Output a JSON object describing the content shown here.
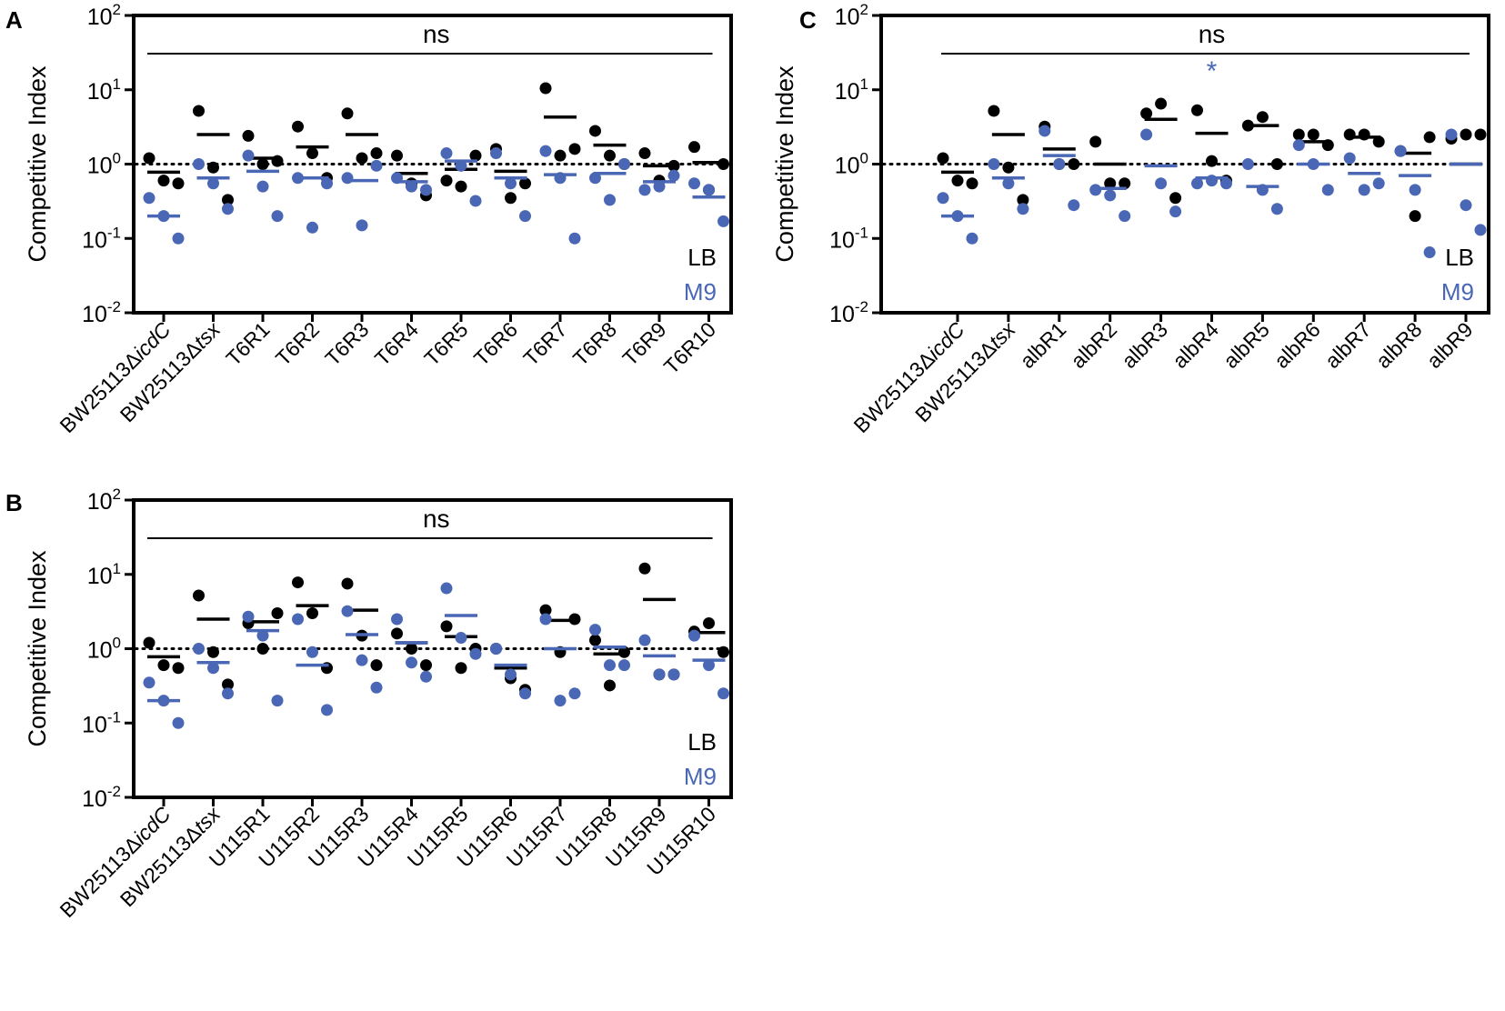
{
  "colors": {
    "lb": "#000000",
    "m9": "#4a67b5"
  },
  "chart_data": [
    {
      "type": "scatter",
      "panel_label": "A",
      "ylabel": "Competitive Index",
      "yscale": "log",
      "ylim": [
        0.01,
        100
      ],
      "yticks": [
        {
          "base": "10",
          "exp": "2"
        },
        {
          "base": "10",
          "exp": "1"
        },
        {
          "base": "10",
          "exp": "0"
        },
        {
          "base": "10",
          "exp": "-1"
        },
        {
          "base": "10",
          "exp": "-2"
        }
      ],
      "reference_line": 1,
      "significance": "ns",
      "legend": {
        "lb": "LB",
        "m9": "M9"
      },
      "categories": [
        {
          "parts": [
            {
              "t": "BW25113Δ",
              "i": false
            },
            {
              "t": "icdC",
              "i": true
            }
          ]
        },
        {
          "parts": [
            {
              "t": "BW25113Δ",
              "i": false
            },
            {
              "t": "tsx",
              "i": true
            }
          ]
        },
        {
          "parts": [
            {
              "t": "T6R1",
              "i": false
            }
          ]
        },
        {
          "parts": [
            {
              "t": "T6R2",
              "i": false
            }
          ]
        },
        {
          "parts": [
            {
              "t": "T6R3",
              "i": false
            }
          ]
        },
        {
          "parts": [
            {
              "t": "T6R4",
              "i": false
            }
          ]
        },
        {
          "parts": [
            {
              "t": "T6R5",
              "i": false
            }
          ]
        },
        {
          "parts": [
            {
              "t": "T6R6",
              "i": false
            }
          ]
        },
        {
          "parts": [
            {
              "t": "T6R7",
              "i": false
            }
          ]
        },
        {
          "parts": [
            {
              "t": "T6R8",
              "i": false
            }
          ]
        },
        {
          "parts": [
            {
              "t": "T6R9",
              "i": false
            }
          ]
        },
        {
          "parts": [
            {
              "t": "T6R10",
              "i": false
            }
          ]
        }
      ],
      "series": [
        {
          "name": "LB",
          "color_key": "lb",
          "points": [
            [
              1.2,
              0.6,
              0.55
            ],
            [
              5.2,
              0.9,
              0.33
            ],
            [
              2.4,
              1.0,
              1.1
            ],
            [
              3.2,
              1.4,
              0.65
            ],
            [
              4.8,
              1.2,
              1.4
            ],
            [
              1.3,
              0.55,
              0.38
            ],
            [
              0.6,
              0.5,
              1.3
            ],
            [
              1.6,
              0.35,
              0.55
            ],
            [
              10.5,
              1.3,
              1.6
            ],
            [
              2.8,
              1.3,
              1.0
            ],
            [
              1.4,
              0.6,
              0.95
            ],
            [
              1.7,
              0.45,
              1.0
            ]
          ],
          "means": [
            0.78,
            2.5,
            1.2,
            1.7,
            2.5,
            0.75,
            0.85,
            0.8,
            4.3,
            1.8,
            0.95,
            1.05
          ]
        },
        {
          "name": "M9",
          "color_key": "m9",
          "points": [
            [
              0.35,
              0.2,
              0.1
            ],
            [
              1.0,
              0.55,
              0.25
            ],
            [
              1.3,
              0.5,
              0.2
            ],
            [
              0.65,
              0.14,
              0.55
            ],
            [
              0.65,
              0.15,
              0.95
            ],
            [
              0.65,
              0.5,
              0.45
            ],
            [
              1.4,
              0.95,
              0.32
            ],
            [
              1.4,
              0.55,
              0.2
            ],
            [
              1.5,
              0.65,
              0.1
            ],
            [
              0.65,
              0.33,
              1.0
            ],
            [
              0.45,
              0.5,
              0.7
            ],
            [
              0.55,
              0.45,
              0.17
            ]
          ],
          "means": [
            0.2,
            0.65,
            0.8,
            0.65,
            0.6,
            0.58,
            1.1,
            0.65,
            0.72,
            0.75,
            0.58,
            0.36
          ]
        }
      ]
    },
    {
      "type": "scatter",
      "panel_label": "B",
      "ylabel": "Competitive Index",
      "yscale": "log",
      "ylim": [
        0.01,
        100
      ],
      "yticks": [
        {
          "base": "10",
          "exp": "2"
        },
        {
          "base": "10",
          "exp": "1"
        },
        {
          "base": "10",
          "exp": "0"
        },
        {
          "base": "10",
          "exp": "-1"
        },
        {
          "base": "10",
          "exp": "-2"
        }
      ],
      "reference_line": 1,
      "significance": "ns",
      "legend": {
        "lb": "LB",
        "m9": "M9"
      },
      "categories": [
        {
          "parts": [
            {
              "t": "BW25113Δ",
              "i": false
            },
            {
              "t": "icdC",
              "i": true
            }
          ]
        },
        {
          "parts": [
            {
              "t": "BW25113Δ",
              "i": false
            },
            {
              "t": "tsx",
              "i": true
            }
          ]
        },
        {
          "parts": [
            {
              "t": "U115R1",
              "i": false
            }
          ]
        },
        {
          "parts": [
            {
              "t": "U115R2",
              "i": false
            }
          ]
        },
        {
          "parts": [
            {
              "t": "U115R3",
              "i": false
            }
          ]
        },
        {
          "parts": [
            {
              "t": "U115R4",
              "i": false
            }
          ]
        },
        {
          "parts": [
            {
              "t": "U115R5",
              "i": false
            }
          ]
        },
        {
          "parts": [
            {
              "t": "U115R6",
              "i": false
            }
          ]
        },
        {
          "parts": [
            {
              "t": "U115R7",
              "i": false
            }
          ]
        },
        {
          "parts": [
            {
              "t": "U115R8",
              "i": false
            }
          ]
        },
        {
          "parts": [
            {
              "t": "U115R9",
              "i": false
            }
          ]
        },
        {
          "parts": [
            {
              "t": "U115R10",
              "i": false
            }
          ]
        }
      ],
      "series": [
        {
          "name": "LB",
          "color_key": "lb",
          "points": [
            [
              1.2,
              0.6,
              0.55
            ],
            [
              5.2,
              0.9,
              0.33
            ],
            [
              2.2,
              1.0,
              3.0
            ],
            [
              7.8,
              3.0,
              0.55
            ],
            [
              7.5,
              1.5,
              0.6
            ],
            [
              1.6,
              1.0,
              0.6
            ],
            [
              2.0,
              0.55,
              1.0
            ],
            [
              1.0,
              0.4,
              0.28
            ],
            [
              3.3,
              0.9,
              2.5
            ],
            [
              1.3,
              0.32,
              0.9
            ],
            [
              12.0,
              0.45,
              0.45
            ],
            [
              1.7,
              2.2,
              0.9
            ]
          ],
          "means": [
            0.78,
            2.5,
            2.3,
            3.8,
            3.3,
            1.2,
            1.45,
            0.55,
            2.4,
            0.85,
            4.6,
            1.65
          ]
        },
        {
          "name": "M9",
          "color_key": "m9",
          "points": [
            [
              0.35,
              0.2,
              0.1
            ],
            [
              1.0,
              0.55,
              0.25
            ],
            [
              2.7,
              1.5,
              0.2
            ],
            [
              2.5,
              0.9,
              0.15
            ],
            [
              3.2,
              0.7,
              0.3
            ],
            [
              2.5,
              0.65,
              0.42
            ],
            [
              6.5,
              1.4,
              0.85
            ],
            [
              1.0,
              0.45,
              0.25
            ],
            [
              2.5,
              0.2,
              0.25
            ],
            [
              1.8,
              0.6,
              0.6
            ],
            [
              1.3,
              0.45,
              0.45
            ],
            [
              1.5,
              0.6,
              0.25
            ]
          ],
          "means": [
            0.2,
            0.65,
            1.75,
            0.6,
            1.55,
            1.2,
            2.8,
            0.6,
            1.0,
            1.05,
            0.8,
            0.7
          ]
        }
      ]
    },
    {
      "type": "scatter",
      "panel_label": "C",
      "ylabel": "Competitive Index",
      "yscale": "log",
      "ylim": [
        0.01,
        100
      ],
      "yticks": [
        {
          "base": "10",
          "exp": "2"
        },
        {
          "base": "10",
          "exp": "1"
        },
        {
          "base": "10",
          "exp": "0"
        },
        {
          "base": "10",
          "exp": "-1"
        },
        {
          "base": "10",
          "exp": "-2"
        }
      ],
      "reference_line": 1,
      "significance": "ns",
      "legend": {
        "lb": "LB",
        "m9": "M9"
      },
      "annotations": [
        {
          "text": "*",
          "category_index": 5,
          "value": 20,
          "color_key": "m9"
        }
      ],
      "categories": [
        {
          "parts": [
            {
              "t": "BW25113Δ",
              "i": false
            },
            {
              "t": "icdC",
              "i": true
            }
          ]
        },
        {
          "parts": [
            {
              "t": "BW25113Δ",
              "i": false
            },
            {
              "t": "tsx",
              "i": true
            }
          ]
        },
        {
          "parts": [
            {
              "t": "albR1",
              "i": false
            }
          ]
        },
        {
          "parts": [
            {
              "t": "albR2",
              "i": false
            }
          ]
        },
        {
          "parts": [
            {
              "t": "albR3",
              "i": false
            }
          ]
        },
        {
          "parts": [
            {
              "t": "albR4",
              "i": false
            }
          ]
        },
        {
          "parts": [
            {
              "t": "albR5",
              "i": false
            }
          ]
        },
        {
          "parts": [
            {
              "t": "albR6",
              "i": false
            }
          ]
        },
        {
          "parts": [
            {
              "t": "albR7",
              "i": false
            }
          ]
        },
        {
          "parts": [
            {
              "t": "albR8",
              "i": false
            }
          ]
        },
        {
          "parts": [
            {
              "t": "albR9",
              "i": false
            }
          ]
        }
      ],
      "series": [
        {
          "name": "LB",
          "color_key": "lb",
          "points": [
            [
              1.2,
              0.6,
              0.55
            ],
            [
              5.2,
              0.9,
              0.33
            ],
            [
              3.2,
              1.0,
              1.0
            ],
            [
              2.0,
              0.55,
              0.55
            ],
            [
              4.8,
              6.5,
              0.35
            ],
            [
              5.3,
              1.1,
              0.6
            ],
            [
              3.3,
              4.3,
              1.0
            ],
            [
              2.5,
              2.5,
              1.8
            ],
            [
              2.5,
              2.5,
              2.0
            ],
            [
              1.5,
              0.2,
              2.3
            ],
            [
              2.2,
              2.5,
              2.5
            ]
          ],
          "means": [
            0.78,
            2.5,
            1.6,
            1.0,
            4.0,
            2.6,
            3.3,
            2.0,
            2.3,
            1.4,
            1.0
          ]
        },
        {
          "name": "M9",
          "color_key": "m9",
          "points": [
            [
              0.35,
              0.2,
              0.1
            ],
            [
              1.0,
              0.55,
              0.25
            ],
            [
              2.8,
              1.0,
              0.28
            ],
            [
              0.45,
              0.38,
              0.2
            ],
            [
              2.5,
              0.55,
              0.23
            ],
            [
              0.55,
              0.6,
              0.55
            ],
            [
              1.0,
              0.45,
              0.25
            ],
            [
              1.8,
              1.0,
              0.45
            ],
            [
              1.2,
              0.45,
              0.55
            ],
            [
              1.5,
              0.45,
              0.065
            ],
            [
              2.5,
              0.28,
              0.13
            ]
          ],
          "means": [
            0.2,
            0.65,
            1.3,
            0.47,
            0.95,
            0.65,
            0.5,
            1.0,
            0.75,
            0.7,
            1.0
          ]
        }
      ]
    }
  ]
}
